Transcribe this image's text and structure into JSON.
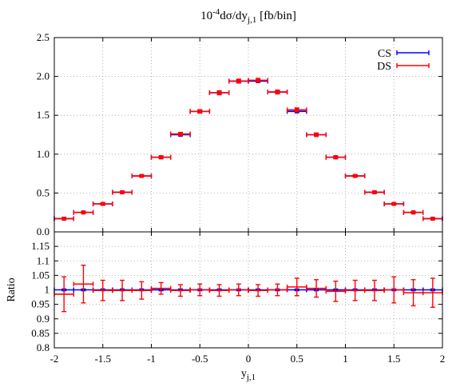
{
  "chart_data": [
    {
      "type": "scatter",
      "title": "10",
      "title_exp": "-4",
      "title_main": "dσ/dy",
      "title_sub": "j,1",
      "title_unit": " [fb/bin]",
      "xlim": [
        -2,
        2
      ],
      "ylim": [
        0,
        2.5
      ],
      "y_ticks": [
        "0.0",
        "0.5",
        "1.0",
        "1.5",
        "2.0",
        "2.5"
      ],
      "grid": true,
      "legend_position": "top-right",
      "x_bin_halfwidth": 0.1,
      "x": [
        -1.9,
        -1.7,
        -1.5,
        -1.3,
        -1.1,
        -0.9,
        -0.7,
        -0.5,
        -0.3,
        -0.1,
        0.1,
        0.3,
        0.5,
        0.7,
        0.9,
        1.1,
        1.3,
        1.5,
        1.7,
        1.9
      ],
      "series": [
        {
          "name": "CS",
          "color": "#0000ff",
          "values": [
            0.17,
            0.25,
            0.36,
            0.51,
            0.72,
            0.96,
            1.25,
            1.55,
            1.79,
            1.94,
            1.94,
            1.8,
            1.55,
            1.25,
            0.96,
            0.72,
            0.51,
            0.36,
            0.25,
            0.17
          ],
          "errors": [
            0.01,
            0.01,
            0.01,
            0.01,
            0.01,
            0.01,
            0.015,
            0.015,
            0.015,
            0.015,
            0.015,
            0.015,
            0.015,
            0.015,
            0.01,
            0.01,
            0.01,
            0.01,
            0.01,
            0.01
          ]
        },
        {
          "name": "DS",
          "color": "#ff0000",
          "values": [
            0.17,
            0.25,
            0.36,
            0.51,
            0.72,
            0.96,
            1.26,
            1.55,
            1.79,
            1.94,
            1.95,
            1.8,
            1.57,
            1.25,
            0.96,
            0.72,
            0.51,
            0.36,
            0.25,
            0.17
          ],
          "errors": [
            0.008,
            0.01,
            0.012,
            0.012,
            0.015,
            0.018,
            0.02,
            0.022,
            0.025,
            0.025,
            0.025,
            0.025,
            0.025,
            0.022,
            0.018,
            0.015,
            0.012,
            0.012,
            0.01,
            0.008
          ]
        }
      ]
    },
    {
      "type": "scatter",
      "xlabel": "y",
      "xlabel_sub": "j,1",
      "ylabel": "Ratio",
      "xlim": [
        -2,
        2
      ],
      "ylim": [
        0.8,
        1.2
      ],
      "x_ticks": [
        "-2",
        "-1.5",
        "-1",
        "-0.5",
        "0",
        "0.5",
        "1",
        "1.5",
        "2"
      ],
      "y_ticks": [
        "0.8",
        "0.85",
        "0.9",
        "0.95",
        "1",
        "1.05",
        "1.1",
        "1.15"
      ],
      "grid": true,
      "x_bin_halfwidth": 0.1,
      "x": [
        -1.9,
        -1.7,
        -1.5,
        -1.3,
        -1.1,
        -0.9,
        -0.7,
        -0.5,
        -0.3,
        -0.1,
        0.1,
        0.3,
        0.5,
        0.7,
        0.9,
        1.1,
        1.3,
        1.5,
        1.7,
        1.9
      ],
      "series": [
        {
          "name": "CS",
          "color": "#0000ff",
          "values": [
            1,
            1,
            1,
            1,
            1,
            1,
            1,
            1,
            1,
            1,
            1,
            1,
            1,
            1,
            1,
            1,
            1,
            1,
            1,
            1
          ],
          "errors": [
            0.003,
            0.003,
            0.003,
            0.003,
            0.003,
            0.003,
            0.003,
            0.003,
            0.003,
            0.003,
            0.003,
            0.003,
            0.003,
            0.003,
            0.003,
            0.003,
            0.003,
            0.003,
            0.003,
            0.003
          ]
        },
        {
          "name": "DS",
          "color": "#ff0000",
          "values": [
            0.985,
            1.02,
            0.998,
            0.998,
            0.998,
            1.005,
            0.998,
            1.0,
            0.998,
            1.0,
            0.998,
            1.0,
            1.01,
            1.005,
            0.995,
            0.998,
            0.998,
            1.0,
            0.99,
            0.99
          ],
          "errors": [
            0.06,
            0.065,
            0.035,
            0.035,
            0.03,
            0.02,
            0.02,
            0.02,
            0.02,
            0.02,
            0.02,
            0.02,
            0.03,
            0.03,
            0.035,
            0.035,
            0.035,
            0.045,
            0.045,
            0.05
          ]
        }
      ]
    }
  ]
}
